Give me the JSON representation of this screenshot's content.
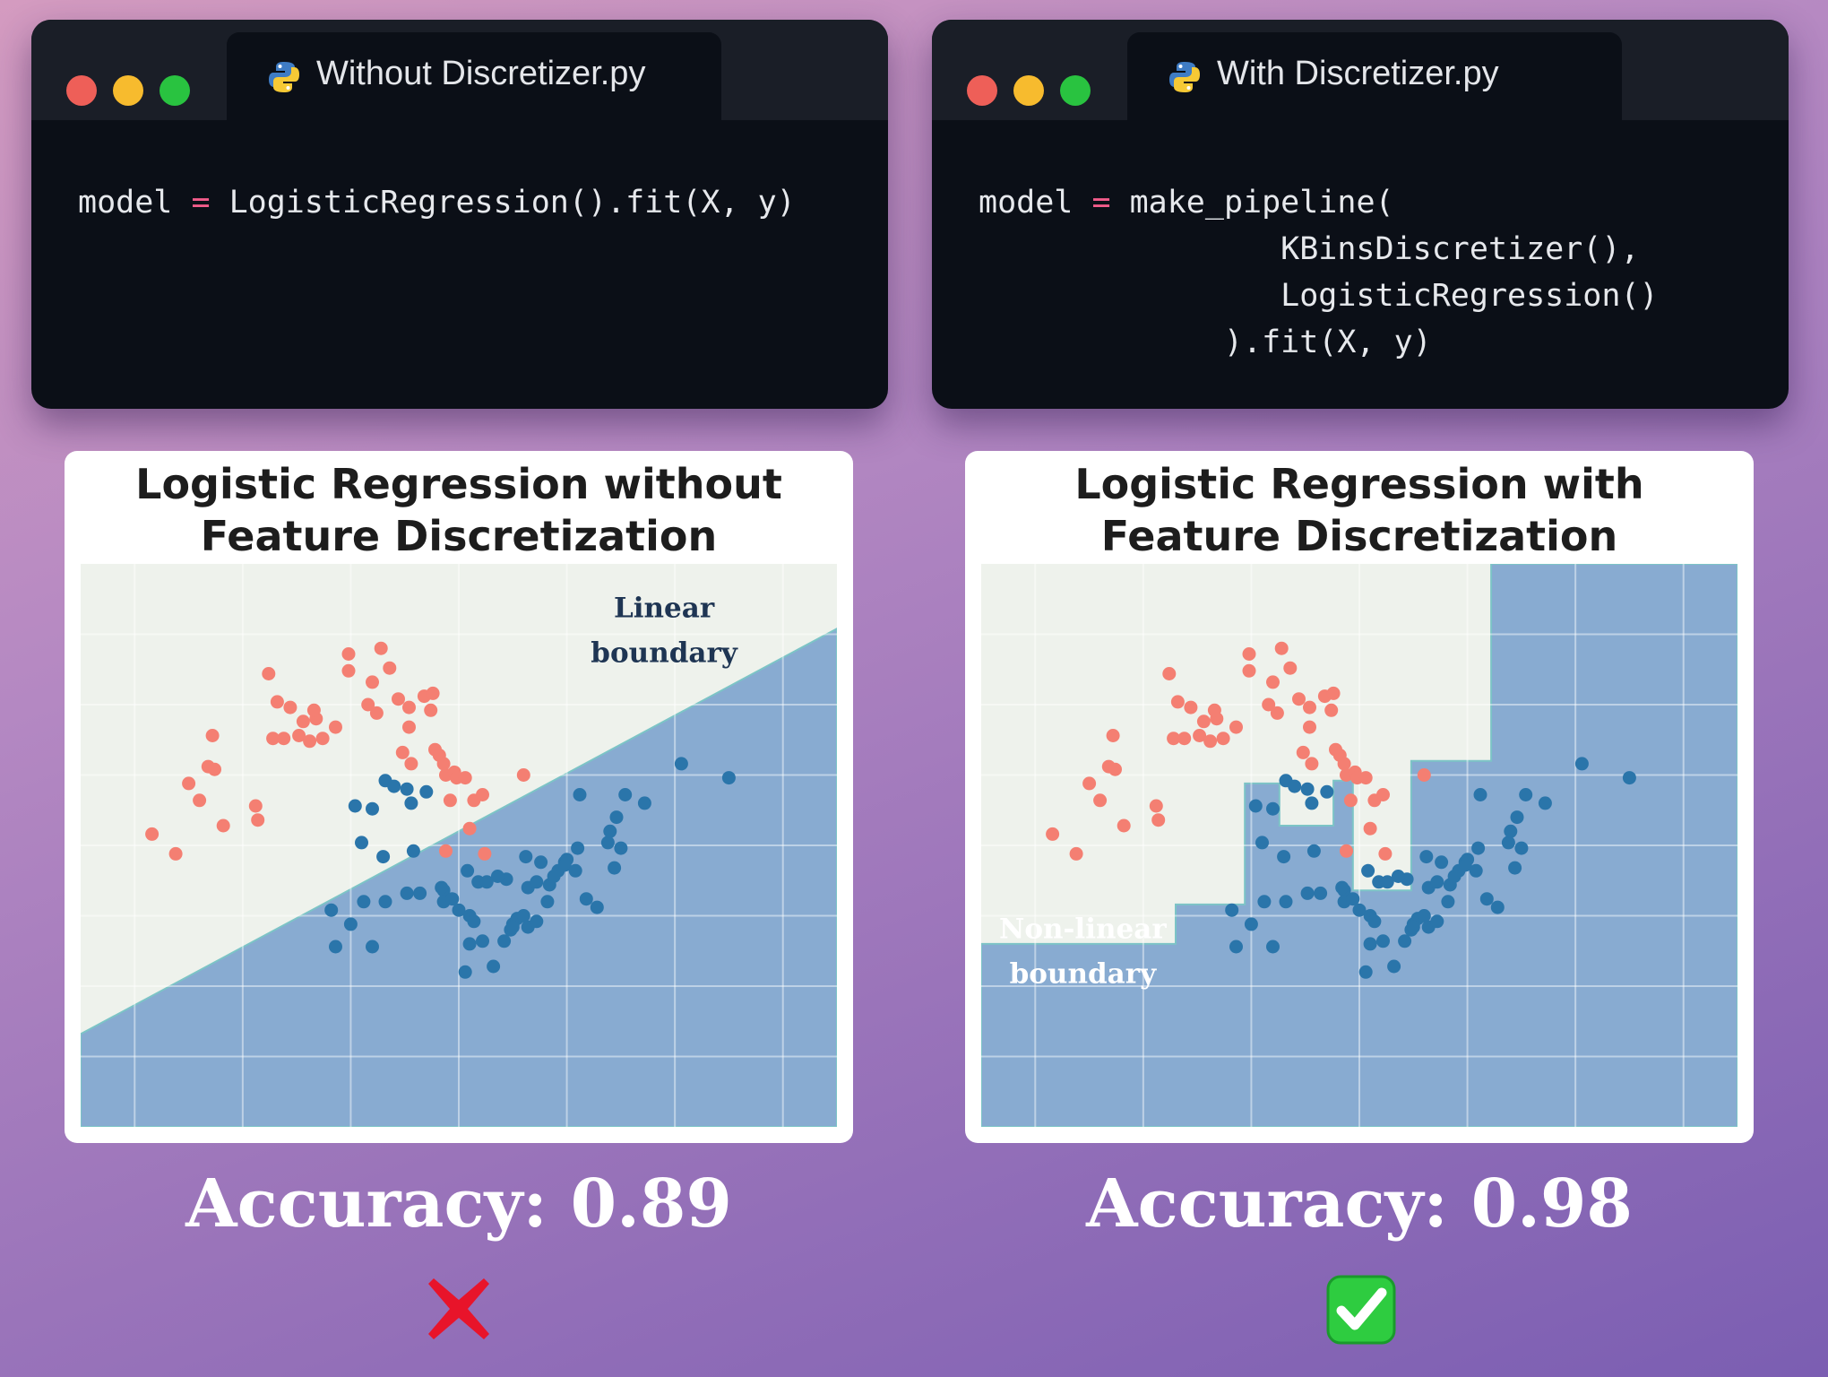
{
  "editors": [
    {
      "tab_label": "Without Discretizer.py",
      "code_lines": [
        [
          "model ",
          "=",
          " LogisticRegression().fit(X, y)"
        ]
      ]
    },
    {
      "tab_label": "With Discretizer.py",
      "code_lines": [
        [
          "model ",
          "=",
          " make_pipeline("
        ],
        [
          "                KBinsDiscretizer(),",
          "",
          ""
        ],
        [
          "                LogisticRegression()",
          "",
          ""
        ],
        [
          "             ).fit(X, y)",
          "",
          ""
        ]
      ]
    }
  ],
  "colors": {
    "class_0": "#f47f72",
    "class_1": "#2a75aa",
    "region_0": "#eef2ec",
    "region_1": "#88abd1",
    "code_operator": "#f25c8a",
    "pass": "#2ecc40",
    "fail": "#e8142a"
  },
  "chart_data": [
    {
      "type": "scatter",
      "title": [
        "Logistic Regression without",
        "Feature Discretization"
      ],
      "xlim": [
        -1.25,
        2.25
      ],
      "ylim": [
        -0.75,
        1.25
      ],
      "grid": true,
      "annotation": {
        "lines": [
          "Linear",
          "boundary"
        ],
        "x": 1.45,
        "y": 1.06,
        "color": "#1e3553"
      },
      "boundary": {
        "kind": "linear",
        "at_xmin": -0.42,
        "at_xmax": 1.02
      },
      "series": [
        {
          "class": 0,
          "points": [
            [
              -0.92,
              0.29
            ],
            [
              -0.81,
              0.22
            ],
            [
              -0.75,
              0.47
            ],
            [
              -0.7,
              0.41
            ],
            [
              -0.66,
              0.53
            ],
            [
              -0.63,
              0.52
            ],
            [
              -0.64,
              0.64
            ],
            [
              -0.59,
              0.32
            ],
            [
              -0.43,
              0.34
            ],
            [
              -0.44,
              0.39
            ],
            [
              -0.38,
              0.86
            ],
            [
              -0.34,
              0.76
            ],
            [
              -0.36,
              0.63
            ],
            [
              -0.31,
              0.63
            ],
            [
              -0.24,
              0.64
            ],
            [
              -0.28,
              0.74
            ],
            [
              -0.22,
              0.69
            ],
            [
              -0.16,
              0.7
            ],
            [
              -0.19,
              0.62
            ],
            [
              -0.13,
              0.63
            ],
            [
              -0.17,
              0.73
            ],
            [
              -0.07,
              0.67
            ],
            [
              -0.01,
              0.93
            ],
            [
              -0.01,
              0.87
            ],
            [
              0.08,
              0.75
            ],
            [
              0.1,
              0.83
            ],
            [
              0.14,
              0.95
            ],
            [
              0.12,
              0.72
            ],
            [
              0.18,
              0.88
            ],
            [
              0.22,
              0.77
            ],
            [
              0.27,
              0.74
            ],
            [
              0.27,
              0.67
            ],
            [
              0.24,
              0.58
            ],
            [
              0.28,
              0.54
            ],
            [
              0.34,
              0.78
            ],
            [
              0.38,
              0.79
            ],
            [
              0.37,
              0.73
            ],
            [
              0.39,
              0.59
            ],
            [
              0.41,
              0.57
            ],
            [
              0.43,
              0.54
            ],
            [
              0.44,
              0.5
            ],
            [
              0.48,
              0.51
            ],
            [
              0.49,
              0.49
            ],
            [
              0.53,
              0.49
            ],
            [
              0.57,
              0.41
            ],
            [
              0.46,
              0.41
            ],
            [
              0.61,
              0.43
            ],
            [
              0.8,
              0.5
            ],
            [
              0.62,
              0.22
            ],
            [
              0.55,
              0.31
            ],
            [
              0.44,
              0.23
            ]
          ]
        },
        {
          "class": 1,
          "points": [
            [
              0.16,
              0.48
            ],
            [
              0.2,
              0.46
            ],
            [
              0.26,
              0.45
            ],
            [
              0.35,
              0.44
            ],
            [
              0.28,
              0.4
            ],
            [
              0.02,
              0.39
            ],
            [
              0.1,
              0.38
            ],
            [
              0.05,
              0.26
            ],
            [
              0.15,
              0.21
            ],
            [
              0.29,
              0.23
            ],
            [
              0.43,
              0.09
            ],
            [
              0.43,
              0.05
            ],
            [
              0.47,
              0.06
            ],
            [
              0.5,
              0.02
            ],
            [
              0.55,
              0.0
            ],
            [
              0.61,
              -0.09
            ],
            [
              0.66,
              -0.18
            ],
            [
              0.71,
              -0.09
            ],
            [
              0.75,
              -0.03
            ],
            [
              0.82,
              -0.04
            ],
            [
              0.86,
              -0.02
            ],
            [
              0.92,
              0.11
            ],
            [
              0.96,
              0.16
            ],
            [
              0.99,
              0.19
            ],
            [
              1.0,
              0.2
            ],
            [
              1.05,
              0.24
            ],
            [
              1.19,
              0.26
            ],
            [
              1.2,
              0.3
            ],
            [
              1.23,
              0.35
            ],
            [
              1.27,
              0.43
            ],
            [
              1.36,
              0.4
            ],
            [
              1.53,
              0.54
            ],
            [
              1.75,
              0.49
            ],
            [
              1.06,
              0.43
            ],
            [
              0.81,
              0.21
            ],
            [
              0.88,
              0.19
            ],
            [
              0.94,
              0.14
            ],
            [
              0.99,
              0.18
            ],
            [
              1.04,
              0.16
            ],
            [
              1.14,
              0.03
            ],
            [
              1.25,
              0.24
            ],
            [
              0.53,
              -0.2
            ],
            [
              0.55,
              -0.1
            ],
            [
              0.57,
              -0.02
            ],
            [
              0.59,
              0.12
            ],
            [
              0.72,
              0.13
            ],
            [
              0.74,
              -0.05
            ],
            [
              0.77,
              -0.01
            ],
            [
              0.8,
              0.0
            ],
            [
              0.82,
              0.1
            ],
            [
              0.86,
              0.12
            ],
            [
              -0.09,
              0.02
            ],
            [
              -0.07,
              -0.11
            ],
            [
              0.0,
              -0.03
            ],
            [
              0.06,
              0.05
            ],
            [
              0.1,
              -0.11
            ],
            [
              0.16,
              0.05
            ],
            [
              0.26,
              0.08
            ],
            [
              0.42,
              0.1
            ],
            [
              0.54,
              0.16
            ],
            [
              1.09,
              0.06
            ],
            [
              1.22,
              0.17
            ],
            [
              0.91,
              0.05
            ],
            [
              0.75,
              -0.04
            ],
            [
              0.63,
              0.12
            ],
            [
              0.68,
              0.14
            ],
            [
              0.32,
              0.08
            ]
          ]
        }
      ]
    },
    {
      "type": "scatter",
      "title": [
        "Logistic Regression with",
        "Feature Discretization"
      ],
      "xlim": [
        -1.25,
        2.25
      ],
      "ylim": [
        -0.75,
        1.25
      ],
      "grid": true,
      "annotation": {
        "lines": [
          "Non-linear",
          "boundary"
        ],
        "x": -0.78,
        "y": -0.08,
        "color": "#ffffff"
      },
      "boundary": {
        "kind": "step",
        "region_1_polygon": [
          [
            -1.25,
            -0.75
          ],
          [
            -1.25,
            -0.1
          ],
          [
            -0.35,
            -0.1
          ],
          [
            -0.35,
            0.04
          ],
          [
            -0.03,
            0.04
          ],
          [
            -0.03,
            0.47
          ],
          [
            0.13,
            0.47
          ],
          [
            0.13,
            0.32
          ],
          [
            0.38,
            0.32
          ],
          [
            0.38,
            0.48
          ],
          [
            0.47,
            0.48
          ],
          [
            0.47,
            0.09
          ],
          [
            0.74,
            0.09
          ],
          [
            0.74,
            0.55
          ],
          [
            1.11,
            0.55
          ],
          [
            1.11,
            1.25
          ],
          [
            2.25,
            1.25
          ],
          [
            2.25,
            -0.75
          ]
        ]
      },
      "series": [
        {
          "class": 0,
          "points": [
            [
              -0.92,
              0.29
            ],
            [
              -0.81,
              0.22
            ],
            [
              -0.75,
              0.47
            ],
            [
              -0.7,
              0.41
            ],
            [
              -0.66,
              0.53
            ],
            [
              -0.63,
              0.52
            ],
            [
              -0.64,
              0.64
            ],
            [
              -0.59,
              0.32
            ],
            [
              -0.43,
              0.34
            ],
            [
              -0.44,
              0.39
            ],
            [
              -0.38,
              0.86
            ],
            [
              -0.34,
              0.76
            ],
            [
              -0.36,
              0.63
            ],
            [
              -0.31,
              0.63
            ],
            [
              -0.24,
              0.64
            ],
            [
              -0.28,
              0.74
            ],
            [
              -0.22,
              0.69
            ],
            [
              -0.16,
              0.7
            ],
            [
              -0.19,
              0.62
            ],
            [
              -0.13,
              0.63
            ],
            [
              -0.17,
              0.73
            ],
            [
              -0.07,
              0.67
            ],
            [
              -0.01,
              0.93
            ],
            [
              -0.01,
              0.87
            ],
            [
              0.08,
              0.75
            ],
            [
              0.1,
              0.83
            ],
            [
              0.14,
              0.95
            ],
            [
              0.12,
              0.72
            ],
            [
              0.18,
              0.88
            ],
            [
              0.22,
              0.77
            ],
            [
              0.27,
              0.74
            ],
            [
              0.27,
              0.67
            ],
            [
              0.24,
              0.58
            ],
            [
              0.28,
              0.54
            ],
            [
              0.34,
              0.78
            ],
            [
              0.38,
              0.79
            ],
            [
              0.37,
              0.73
            ],
            [
              0.39,
              0.59
            ],
            [
              0.41,
              0.57
            ],
            [
              0.43,
              0.54
            ],
            [
              0.44,
              0.5
            ],
            [
              0.48,
              0.51
            ],
            [
              0.49,
              0.49
            ],
            [
              0.53,
              0.49
            ],
            [
              0.57,
              0.41
            ],
            [
              0.46,
              0.41
            ],
            [
              0.61,
              0.43
            ],
            [
              0.8,
              0.5
            ],
            [
              0.62,
              0.22
            ],
            [
              0.55,
              0.31
            ],
            [
              0.44,
              0.23
            ]
          ]
        },
        {
          "class": 1,
          "points": [
            [
              0.16,
              0.48
            ],
            [
              0.2,
              0.46
            ],
            [
              0.26,
              0.45
            ],
            [
              0.35,
              0.44
            ],
            [
              0.28,
              0.4
            ],
            [
              0.02,
              0.39
            ],
            [
              0.1,
              0.38
            ],
            [
              0.05,
              0.26
            ],
            [
              0.15,
              0.21
            ],
            [
              0.29,
              0.23
            ],
            [
              0.43,
              0.09
            ],
            [
              0.43,
              0.05
            ],
            [
              0.47,
              0.06
            ],
            [
              0.5,
              0.02
            ],
            [
              0.55,
              0.0
            ],
            [
              0.61,
              -0.09
            ],
            [
              0.66,
              -0.18
            ],
            [
              0.71,
              -0.09
            ],
            [
              0.75,
              -0.03
            ],
            [
              0.82,
              -0.04
            ],
            [
              0.86,
              -0.02
            ],
            [
              0.92,
              0.11
            ],
            [
              0.96,
              0.16
            ],
            [
              0.99,
              0.19
            ],
            [
              1.0,
              0.2
            ],
            [
              1.05,
              0.24
            ],
            [
              1.19,
              0.26
            ],
            [
              1.2,
              0.3
            ],
            [
              1.23,
              0.35
            ],
            [
              1.27,
              0.43
            ],
            [
              1.36,
              0.4
            ],
            [
              1.53,
              0.54
            ],
            [
              1.75,
              0.49
            ],
            [
              1.06,
              0.43
            ],
            [
              0.81,
              0.21
            ],
            [
              0.88,
              0.19
            ],
            [
              0.94,
              0.14
            ],
            [
              0.99,
              0.18
            ],
            [
              1.04,
              0.16
            ],
            [
              1.14,
              0.03
            ],
            [
              1.25,
              0.24
            ],
            [
              0.53,
              -0.2
            ],
            [
              0.55,
              -0.1
            ],
            [
              0.57,
              -0.02
            ],
            [
              0.59,
              0.12
            ],
            [
              0.72,
              0.13
            ],
            [
              0.74,
              -0.05
            ],
            [
              0.77,
              -0.01
            ],
            [
              0.8,
              0.0
            ],
            [
              0.82,
              0.1
            ],
            [
              0.86,
              0.12
            ],
            [
              -0.09,
              0.02
            ],
            [
              -0.07,
              -0.11
            ],
            [
              0.0,
              -0.03
            ],
            [
              0.06,
              0.05
            ],
            [
              0.1,
              -0.11
            ],
            [
              0.16,
              0.05
            ],
            [
              0.26,
              0.08
            ],
            [
              0.42,
              0.1
            ],
            [
              0.54,
              0.16
            ],
            [
              1.09,
              0.06
            ],
            [
              1.22,
              0.17
            ],
            [
              0.91,
              0.05
            ],
            [
              0.75,
              -0.04
            ],
            [
              0.63,
              0.12
            ],
            [
              0.68,
              0.14
            ],
            [
              0.32,
              0.08
            ]
          ]
        }
      ]
    }
  ],
  "results": [
    {
      "accuracy_text": "Accuracy: 0.89",
      "verdict": "fail",
      "verdict_icon": "cross-mark-icon"
    },
    {
      "accuracy_text": "Accuracy: 0.98",
      "verdict": "pass",
      "verdict_icon": "check-mark-icon"
    }
  ]
}
